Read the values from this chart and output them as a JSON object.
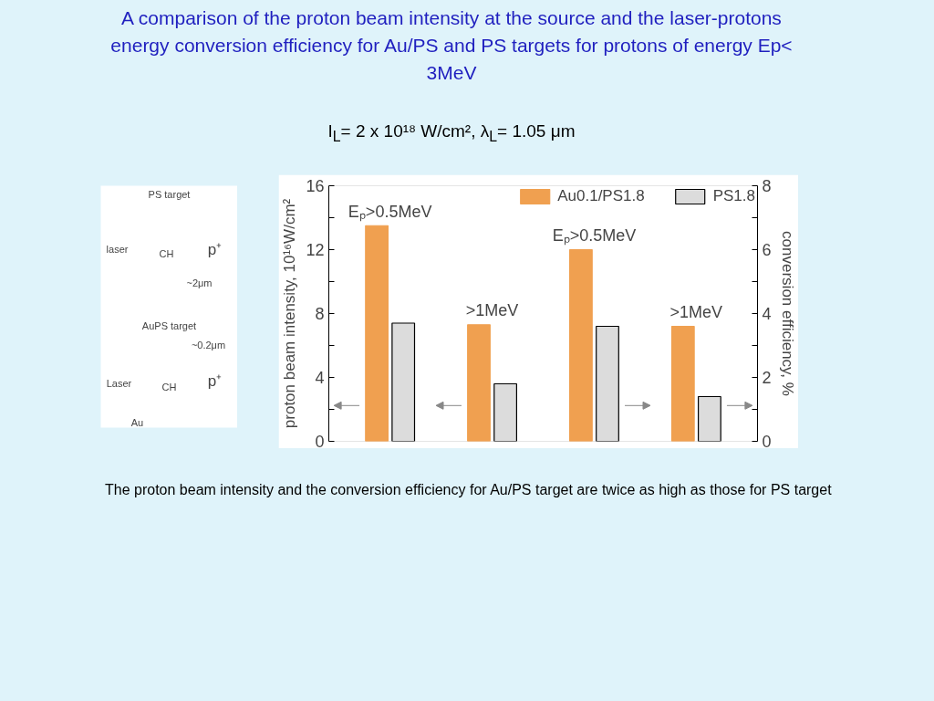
{
  "chart_data": {
    "type": "bar",
    "title": "A comparison of the proton beam intensity at the source and the laser-protons energy conversion efficiency for Au/PS and PS targets for protons of energy Ep< 3MeV",
    "subtitle": "I$_{L}$= 2 x 10¹⁸ W/cm², λ$_{L}$= 1.05 μm",
    "ylabel": "proton beam intensity, 10¹⁶W/cm²",
    "y2label": "conversion efficiency, %",
    "categories": [
      "Eₚ>0.5MeV",
      ">1MeV",
      "Eₚ>0.5MeV",
      ">1MeV"
    ],
    "series": [
      {
        "name": "Au0.1/PS1.8",
        "color": "#f0a050",
        "values": [
          13.5,
          7.3,
          null,
          null
        ]
      },
      {
        "name": "PS1.8",
        "color": "#dcdcdc",
        "values": [
          7.4,
          3.6,
          null,
          null
        ]
      },
      {
        "color": "#f0a050",
        "values": [
          null,
          null,
          6.0,
          3.6
        ],
        "axis": "y2"
      },
      {
        "color": "#dcdcdc",
        "values": [
          null,
          null,
          3.6,
          1.4
        ],
        "axis": "y2"
      }
    ],
    "ylim": [
      0,
      16
    ],
    "yticks": [
      0,
      {
        "value": 2,
        "label": null
      },
      4,
      {
        "value": 6,
        "label": null
      },
      8,
      {
        "value": 10,
        "label": null
      },
      12,
      {
        "value": 14,
        "label": null
      },
      16
    ],
    "y2lim": [
      0,
      8
    ],
    "y2ticks": [
      0,
      {
        "value": 1,
        "label": null
      },
      2,
      {
        "value": 3,
        "label": null
      },
      4,
      {
        "value": 5,
        "label": null
      },
      6,
      {
        "value": 7,
        "label": null
      },
      8
    ],
    "legend": "top right",
    "grid": false,
    "annotations": [
      "PS target",
      "laser",
      "CH",
      "p⁺",
      "~2μm",
      "AuPS target",
      "~0.2μm",
      "Laser",
      "CH",
      "p⁺",
      "Au",
      "The proton beam intensity and the conversion efficiency for Au/PS target are twice as high as those for PS target"
    ]
  }
}
